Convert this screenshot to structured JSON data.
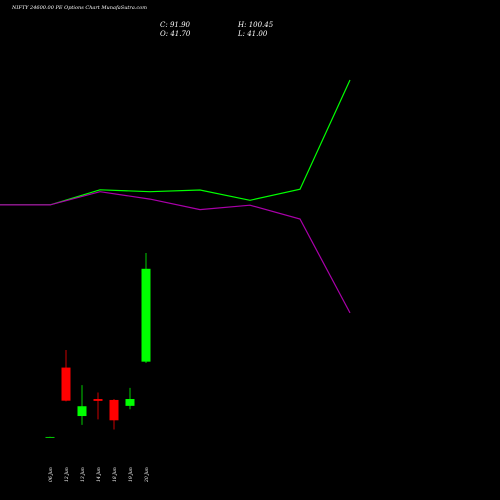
{
  "chart_data": {
    "type": "candlestick",
    "title": "NIFTY 24600.00 PE Options Chart MunafaSutra.com",
    "ohlc": {
      "c": "C: 91.90",
      "h": "H: 100.45",
      "o": "O: 41.70",
      "l": "L: 41.00"
    },
    "categories": [
      "06 Jun",
      "12 Jun",
      "13 Jun",
      "14 Jun",
      "18 Jun",
      "19 Jun",
      "20 Jun"
    ],
    "candles": [
      {
        "date": "06 Jun",
        "open": 1.0,
        "high": 1.2,
        "low": 0.8,
        "close": 1.0,
        "color": "#00cc00"
      },
      {
        "date": "12 Jun",
        "open": 38.5,
        "high": 48.0,
        "low": 20.2,
        "close": 20.6,
        "color": "#ff0000"
      },
      {
        "date": "13 Jun",
        "open": 12.3,
        "high": 29.0,
        "low": 7.5,
        "close": 17.6,
        "color": "#00ff00"
      },
      {
        "date": "14 Jun",
        "open": 21.5,
        "high": 25.0,
        "low": 10.5,
        "close": 20.5,
        "color": "#ff0000"
      },
      {
        "date": "18 Jun",
        "open": 21.0,
        "high": 21.5,
        "low": 5.0,
        "close": 10.0,
        "color": "#ff0000"
      },
      {
        "date": "19 Jun",
        "open": 17.8,
        "high": 27.5,
        "low": 16.0,
        "close": 21.5,
        "color": "#00ff00"
      },
      {
        "date": "20 Jun",
        "open": 41.7,
        "high": 100.45,
        "low": 41.0,
        "close": 91.9,
        "color": "#00ff00"
      }
    ],
    "upper_lines": [
      {
        "color": "#00ff00",
        "values": [
          39.0,
          39.0,
          46.2,
          45.3,
          46.1,
          41.2,
          46.5,
          98.5
        ]
      },
      {
        "color": "#aa00aa",
        "values": [
          39.0,
          39.0,
          45.3,
          41.8,
          36.8,
          38.9,
          32.3,
          -12.4
        ]
      }
    ],
    "xlim": [
      -0.5,
      7.5
    ],
    "ylim": [
      -20,
      120
    ]
  }
}
